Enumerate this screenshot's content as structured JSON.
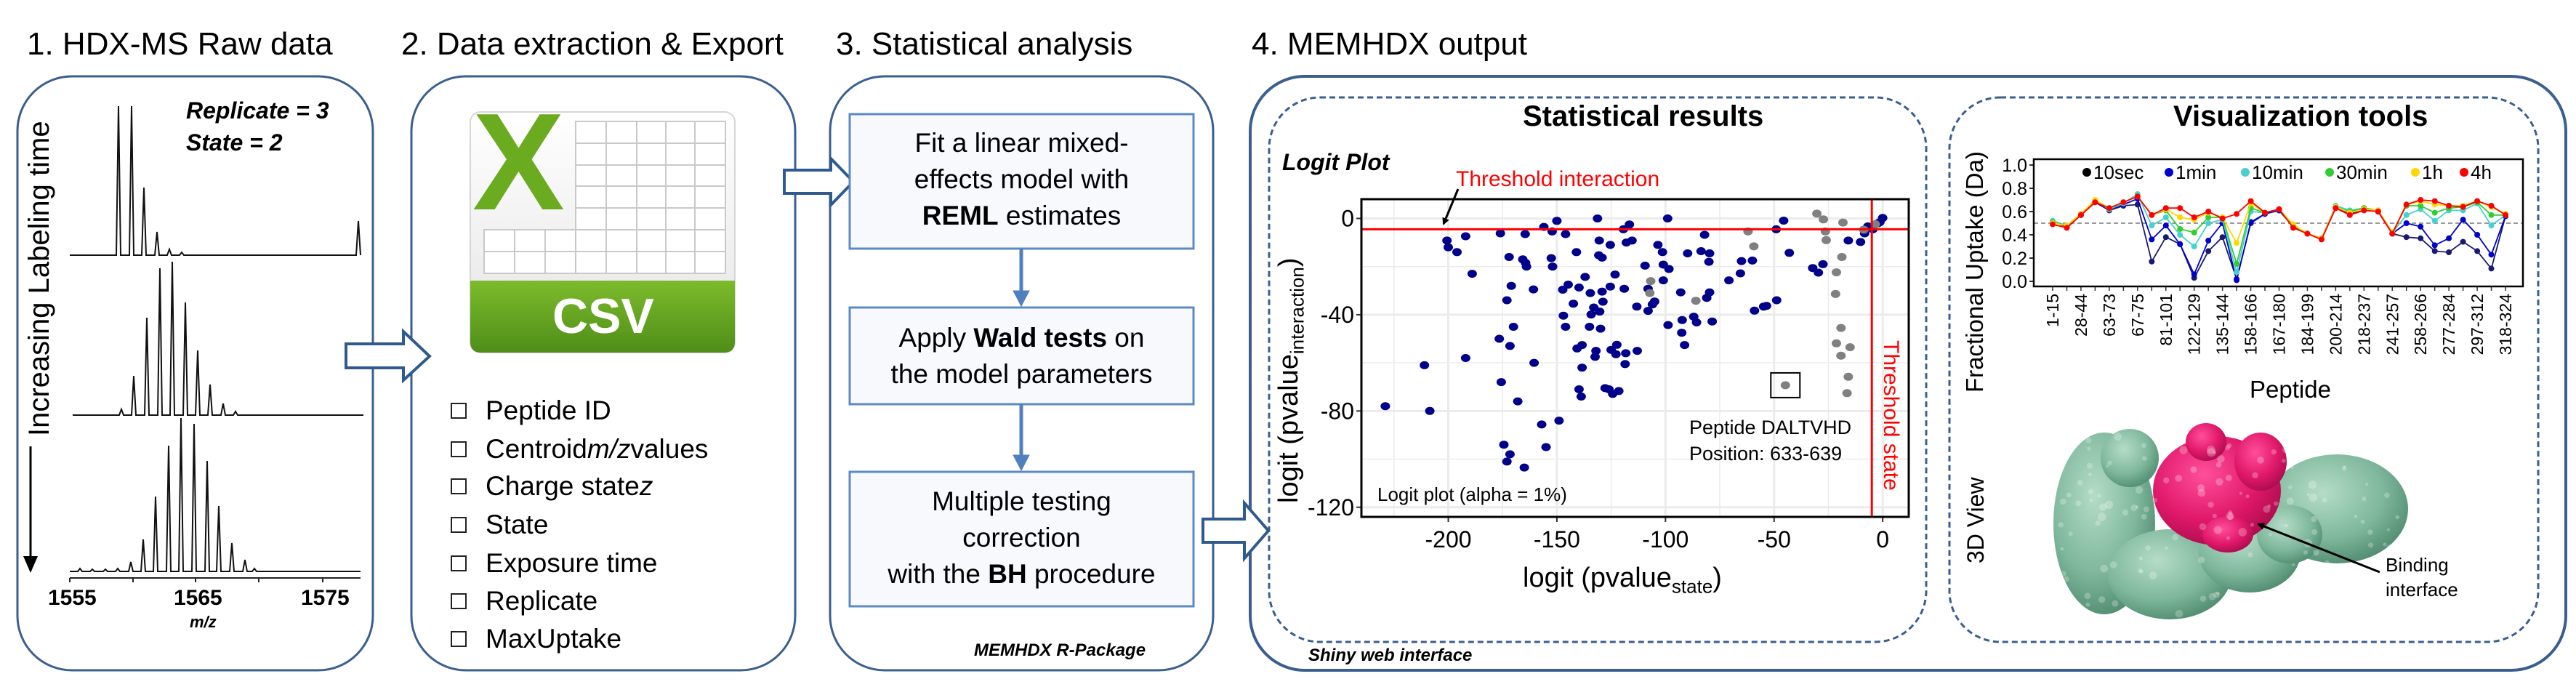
{
  "steps": [
    {
      "title": "1. HDX-MS Raw data"
    },
    {
      "title": "2. Data extraction & Export"
    },
    {
      "title": "3. Statistical analysis"
    },
    {
      "title": "4. MEMHDX output"
    }
  ],
  "raw_data": {
    "replicate": "Replicate = 3",
    "state": "State = 2",
    "time_axis_label": "Increasing Labeling time",
    "mz_ticks": [
      "1555",
      "1565",
      "1575"
    ],
    "mz_label": "m/z"
  },
  "export": {
    "csv_icon": {
      "letter": "X",
      "label": "CSV",
      "color": "#6aab1f"
    },
    "fields": [
      {
        "pre": "Peptide ID",
        "em": "",
        "post": ""
      },
      {
        "pre": "Centroid ",
        "em": "m/z",
        "post": " values"
      },
      {
        "pre": "Charge state ",
        "em": "z",
        "post": ""
      },
      {
        "pre": "State",
        "em": "",
        "post": ""
      },
      {
        "pre": "Exposure time",
        "em": "",
        "post": ""
      },
      {
        "pre": "Replicate",
        "em": "",
        "post": ""
      },
      {
        "pre": "MaxUptake",
        "em": "",
        "post": ""
      }
    ]
  },
  "statistics": {
    "boxes": [
      {
        "line1": "Fit a linear mixed-",
        "line2": "effects model with",
        "bold": "REML",
        "rest": " estimates"
      },
      {
        "pre": "Apply ",
        "bold": "Wald tests",
        "post": " on",
        "line2": "the model parameters"
      },
      {
        "line1": "Multiple testing",
        "line2": "correction",
        "pre": "with the ",
        "bold": "BH",
        "post": " procedure"
      }
    ],
    "footer": "MEMHDX R-Package"
  },
  "output": {
    "footer": "Shiny web interface",
    "statistical_results": {
      "title": "Statistical results"
    },
    "visualization": {
      "title": "Visualization tools",
      "view3d_label": "3D View",
      "binding_label": [
        "Binding",
        "interface"
      ]
    }
  },
  "colors": {
    "panel_border": "#3a5f8f",
    "box_border": "#5b8ac6",
    "threshold": "#ff0000"
  },
  "chart_data": [
    {
      "type": "scatter",
      "title": "Logit Plot",
      "xlabel": {
        "main": "logit (pvalue",
        "sub": "state",
        "close": ")"
      },
      "ylabel": {
        "main": "logit (pvalue",
        "sub": "interaction",
        "close": ")"
      },
      "xlim": [
        -240,
        12
      ],
      "ylim": [
        -124,
        8
      ],
      "xticks": [
        -200,
        -150,
        -100,
        -50,
        0
      ],
      "yticks": [
        0,
        -40,
        -80,
        -120
      ],
      "grid": true,
      "thresholds": {
        "interaction": -4.5,
        "state": -5
      },
      "threshold_labels": {
        "interaction": "Threshold interaction",
        "state": "Threshold state"
      },
      "annotation": "Logit plot (alpha = 1%)",
      "highlighted_peptide": {
        "x": -44.8,
        "y": -69.3,
        "lines": [
          "Peptide DALTVHD",
          "Position: 633-639"
        ]
      },
      "series": [
        {
          "color": "#00008b",
          "points": [
            [
              -229,
              -78
            ],
            [
              -211,
              -61
            ],
            [
              -208.5,
              -80
            ],
            [
              -200.6,
              -9.2
            ],
            [
              -200,
              -12
            ],
            [
              -196,
              -14
            ],
            [
              -192,
              -7.4
            ],
            [
              -189,
              -23
            ],
            [
              -192,
              -58
            ],
            [
              -176.5,
              -50
            ],
            [
              -176,
              -6.2
            ],
            [
              -175.6,
              -68
            ],
            [
              -174.4,
              -94
            ],
            [
              -173,
              -34
            ],
            [
              -173,
              -101
            ],
            [
              -172,
              -16
            ],
            [
              -171.6,
              -53
            ],
            [
              -171.6,
              -98
            ],
            [
              -171,
              -28
            ],
            [
              -170,
              -45
            ],
            [
              -168,
              -76
            ],
            [
              -165.7,
              -17
            ],
            [
              -164.6,
              -6.5
            ],
            [
              -165,
              -103.5
            ],
            [
              -164.4,
              -18.5
            ],
            [
              -164,
              -20
            ],
            [
              -160.8,
              -29.5
            ],
            [
              -160.5,
              -60
            ],
            [
              -157,
              -85.6
            ],
            [
              -156,
              -3.5
            ],
            [
              -155,
              -95
            ],
            [
              -152.6,
              -16.5
            ],
            [
              -152,
              -20
            ],
            [
              -152.2,
              -5.4
            ],
            [
              -150,
              -1
            ],
            [
              -149,
              -84
            ],
            [
              -147.3,
              -29.6
            ],
            [
              -147,
              -40.4
            ],
            [
              -146,
              -45
            ],
            [
              -146,
              -6.5
            ],
            [
              -144.8,
              -27.5
            ],
            [
              -142.4,
              -35.4
            ],
            [
              -141,
              -14
            ],
            [
              -140.7,
              -54
            ],
            [
              -139.8,
              -71
            ],
            [
              -139.8,
              -28.7
            ],
            [
              -138.8,
              -74
            ],
            [
              -138.4,
              -62
            ],
            [
              -138.4,
              -52.6
            ],
            [
              -137,
              -24.3
            ],
            [
              -135,
              -45
            ],
            [
              -134.6,
              -31
            ],
            [
              -134.2,
              -39.9
            ],
            [
              -133,
              -37
            ],
            [
              -132.4,
              -57.5
            ],
            [
              -132,
              -55
            ],
            [
              -131.3,
              0
            ],
            [
              -130.5,
              -9.2
            ],
            [
              -130.3,
              -38.7
            ],
            [
              -129.9,
              -45.8
            ],
            [
              -130.7,
              -15.3
            ],
            [
              -129.2,
              -16.3
            ],
            [
              -129.2,
              -30.4
            ],
            [
              -128.8,
              -34.6
            ],
            [
              -127.8,
              -70.5
            ],
            [
              -126,
              -71
            ],
            [
              -125.4,
              -28.3
            ],
            [
              -125.4,
              -11
            ],
            [
              -125,
              -54.6
            ],
            [
              -124.3,
              -72.9
            ],
            [
              -123.2,
              -23.3
            ],
            [
              -122.8,
              -56.4
            ],
            [
              -122.4,
              -52.5
            ],
            [
              -121.5,
              -71.7
            ],
            [
              -119.4,
              -4.5
            ],
            [
              -119,
              -29.2
            ],
            [
              -118.6,
              -60.5
            ],
            [
              -118.3,
              -56
            ],
            [
              -118,
              -10
            ],
            [
              -116.6,
              -2.5
            ],
            [
              -115.4,
              -9.2
            ],
            [
              -113.2,
              -36.6
            ],
            [
              -113,
              -55
            ],
            [
              -109.4,
              -19.6
            ],
            [
              -108,
              -38.4
            ],
            [
              -108,
              -29.2
            ],
            [
              -106,
              -35.7
            ],
            [
              -105,
              -34.5
            ],
            [
              -103.5,
              -11
            ],
            [
              -101.4,
              -14
            ],
            [
              -101,
              -25.7
            ],
            [
              -101,
              -19.2
            ],
            [
              -98.8,
              -44.3
            ],
            [
              -99,
              0
            ],
            [
              -98.4,
              -21
            ],
            [
              -93,
              -30.7
            ],
            [
              -92.5,
              -47.5
            ],
            [
              -92.3,
              -42.2
            ],
            [
              -91.2,
              -52.6
            ],
            [
              -89.8,
              -14.5
            ],
            [
              -87,
              -40.8
            ],
            [
              -85.7,
              -43.2
            ],
            [
              -83.6,
              -13.6
            ],
            [
              -82,
              -6.8
            ],
            [
              -81,
              -33
            ],
            [
              -80,
              -18
            ],
            [
              -79.7,
              -14.5
            ],
            [
              -79.7,
              -30.7
            ],
            [
              -78.5,
              -42.8
            ],
            [
              -70.8,
              -25.7
            ],
            [
              -65.5,
              -22.8
            ],
            [
              -65,
              -17.7
            ],
            [
              -60,
              -17.5
            ],
            [
              -59,
              -38.3
            ],
            [
              -54.8,
              -36.6
            ],
            [
              -53.5,
              -36.3
            ],
            [
              -49,
              -4.5
            ],
            [
              -48.8,
              -34
            ],
            [
              -45.6,
              -0.9
            ],
            [
              -43,
              -14.3
            ],
            [
              -32.2,
              -20.6
            ],
            [
              -29.6,
              -22.5
            ],
            [
              -27.5,
              -19
            ],
            [
              -15.8,
              -9.2
            ],
            [
              -10.2,
              -9.8
            ],
            [
              -8.3,
              -6.2
            ],
            [
              -6.8,
              -3.3
            ],
            [
              -4.5,
              -4.5
            ],
            [
              -2.3,
              -2.1
            ],
            [
              0,
              0.2
            ],
            [
              -1.3,
              -1.5
            ]
          ]
        },
        {
          "color": "#808080",
          "points": [
            [
              -30.3,
              2
            ],
            [
              -27.3,
              -0.4
            ],
            [
              -26.4,
              -5.4
            ],
            [
              -26,
              -9
            ],
            [
              -18.3,
              -1.7
            ],
            [
              -18.8,
              -16
            ],
            [
              -21.3,
              -22.4
            ],
            [
              -21.7,
              -31.4
            ],
            [
              -19.2,
              -45.5
            ],
            [
              -21.3,
              -51.9
            ],
            [
              -19.2,
              -57
            ],
            [
              -15,
              -53.5
            ],
            [
              -15.8,
              -65.8
            ],
            [
              -16.4,
              -72.6
            ],
            [
              -62,
              -5.4
            ],
            [
              -59.3,
              -11.6
            ],
            [
              -106.8,
              -26
            ],
            [
              -107.2,
              -31
            ],
            [
              -86,
              -34.2
            ],
            [
              -44.8,
              -69.3
            ],
            [
              -8.7,
              -4.7
            ],
            [
              -3.4,
              -2.4
            ]
          ]
        }
      ]
    },
    {
      "type": "line",
      "xlabel": "Peptide",
      "ylabel": "Fractional Uptake (Da)",
      "ylim": [
        0,
        1
      ],
      "yticks": [
        "0.0",
        "0.2",
        "0.4",
        "0.6",
        "0.8",
        "1.0"
      ],
      "reference_line": 0.5,
      "legend_position": "top",
      "categories": [
        "1-15",
        "",
        "28-44",
        "",
        "63-73",
        "",
        "67-75",
        "",
        "81-101",
        "",
        "122-129",
        "",
        "135-144",
        "",
        "158-166",
        "",
        "167-180",
        "",
        "184-199",
        "",
        "200-214",
        "",
        "218-237",
        "",
        "241-257",
        "",
        "258-266",
        "",
        "277-284",
        "",
        "297-312",
        "",
        "318-324"
      ],
      "series": [
        {
          "name": "10sec",
          "color": "#1a1a6e",
          "legend_color": "#000000",
          "values": [
            0.51,
            0.47,
            0.57,
            0.68,
            0.61,
            0.65,
            0.66,
            0.17,
            0.38,
            0.32,
            0.03,
            0.26,
            0.38,
            0.02,
            0.5,
            0.58,
            0.61,
            0.47,
            0.41,
            0.37,
            0.63,
            0.58,
            0.62,
            0.6,
            0.41,
            0.38,
            0.37,
            0.26,
            0.25,
            0.34,
            0.26,
            0.11,
            0.56
          ]
        },
        {
          "name": "1min",
          "color": "#0000cd",
          "legend_color": "#0000cd",
          "values": [
            0.51,
            0.47,
            0.57,
            0.68,
            0.62,
            0.66,
            0.71,
            0.36,
            0.48,
            0.32,
            0.06,
            0.35,
            0.5,
            0.01,
            0.51,
            0.58,
            0.61,
            0.47,
            0.41,
            0.37,
            0.63,
            0.58,
            0.62,
            0.6,
            0.41,
            0.5,
            0.47,
            0.31,
            0.37,
            0.53,
            0.4,
            0.23,
            0.56
          ]
        },
        {
          "name": "10min",
          "color": "#48d1cc",
          "legend_color": "#48d1cc",
          "values": [
            0.52,
            0.48,
            0.58,
            0.69,
            0.62,
            0.67,
            0.75,
            0.48,
            0.55,
            0.4,
            0.3,
            0.5,
            0.53,
            0.08,
            0.6,
            0.59,
            0.62,
            0.48,
            0.41,
            0.37,
            0.65,
            0.61,
            0.63,
            0.61,
            0.42,
            0.57,
            0.62,
            0.52,
            0.61,
            0.61,
            0.67,
            0.48,
            0.57
          ]
        },
        {
          "name": "30min",
          "color": "#32cd32",
          "legend_color": "#32cd32",
          "values": [
            0.51,
            0.48,
            0.58,
            0.69,
            0.63,
            0.68,
            0.73,
            0.57,
            0.61,
            0.45,
            0.42,
            0.55,
            0.55,
            0.15,
            0.63,
            0.59,
            0.62,
            0.48,
            0.41,
            0.37,
            0.64,
            0.6,
            0.63,
            0.61,
            0.42,
            0.65,
            0.65,
            0.59,
            0.63,
            0.64,
            0.68,
            0.57,
            0.57
          ]
        },
        {
          "name": "1h",
          "color": "#ffd700",
          "legend_color": "#ffd700",
          "values": [
            0.5,
            0.48,
            0.58,
            0.7,
            0.63,
            0.68,
            0.73,
            0.57,
            0.62,
            0.55,
            0.53,
            0.59,
            0.55,
            0.33,
            0.67,
            0.59,
            0.62,
            0.49,
            0.41,
            0.37,
            0.64,
            0.59,
            0.62,
            0.61,
            0.42,
            0.66,
            0.69,
            0.66,
            0.65,
            0.65,
            0.69,
            0.64,
            0.58
          ]
        },
        {
          "name": "4h",
          "color": "#ff0000",
          "legend_color": "#ff0000",
          "values": [
            0.49,
            0.46,
            0.57,
            0.68,
            0.63,
            0.68,
            0.73,
            0.57,
            0.63,
            0.63,
            0.55,
            0.6,
            0.54,
            0.58,
            0.69,
            0.59,
            0.62,
            0.46,
            0.41,
            0.36,
            0.63,
            0.57,
            0.61,
            0.6,
            0.41,
            0.66,
            0.7,
            0.69,
            0.65,
            0.64,
            0.69,
            0.65,
            0.57
          ]
        }
      ]
    }
  ]
}
